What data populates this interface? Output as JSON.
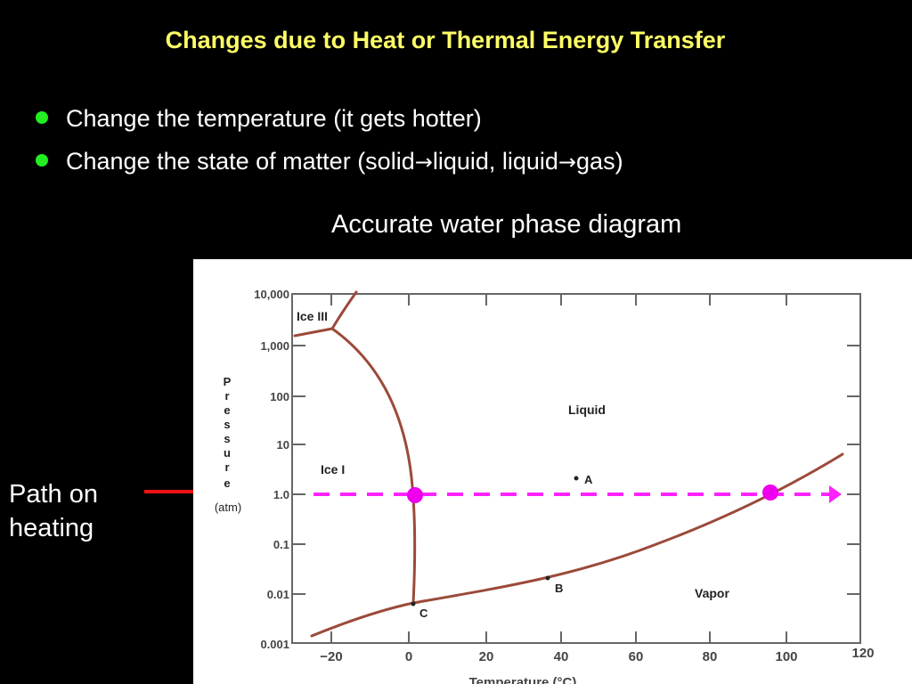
{
  "slide": {
    "title": "Changes due to Heat or Thermal Energy Transfer",
    "bullets": [
      {
        "prefix": "Change the temperature (it gets hotter)"
      },
      {
        "prefix": "Change the state of matter (solid",
        "arrow1": "→",
        "mid": "liquid, liquid",
        "arrow2": "→",
        "suffix": "gas)"
      }
    ],
    "diagram_caption": "Accurate water phase diagram",
    "path_label": [
      "Path on",
      "heating"
    ]
  },
  "diagram": {
    "y_axis_label_letters": [
      "P",
      "r",
      "e",
      "s",
      "s",
      "u",
      "r",
      "e"
    ],
    "y_axis_unit": "(atm)",
    "y_ticks": [
      "10,000",
      "1,000",
      "100",
      "10",
      "1.0",
      "0.1",
      "0.01",
      "0.001"
    ],
    "x_ticks": [
      "−20",
      "0",
      "20",
      "40",
      "60",
      "80",
      "100",
      "120"
    ],
    "x_axis_label": "Temperature (°C)",
    "regions": {
      "ice3": "Ice III",
      "ice1": "Ice I",
      "liquid": "Liquid",
      "vapor": "Vapor"
    },
    "points": {
      "a": "A",
      "b": "B",
      "c": "C"
    },
    "colors": {
      "curve": "#9b4a3a",
      "path": "#ff22ff",
      "marker": "#ee00ee",
      "arrow": "#ee1111",
      "bullet": "#22ee22",
      "title": "#ffff66"
    }
  }
}
